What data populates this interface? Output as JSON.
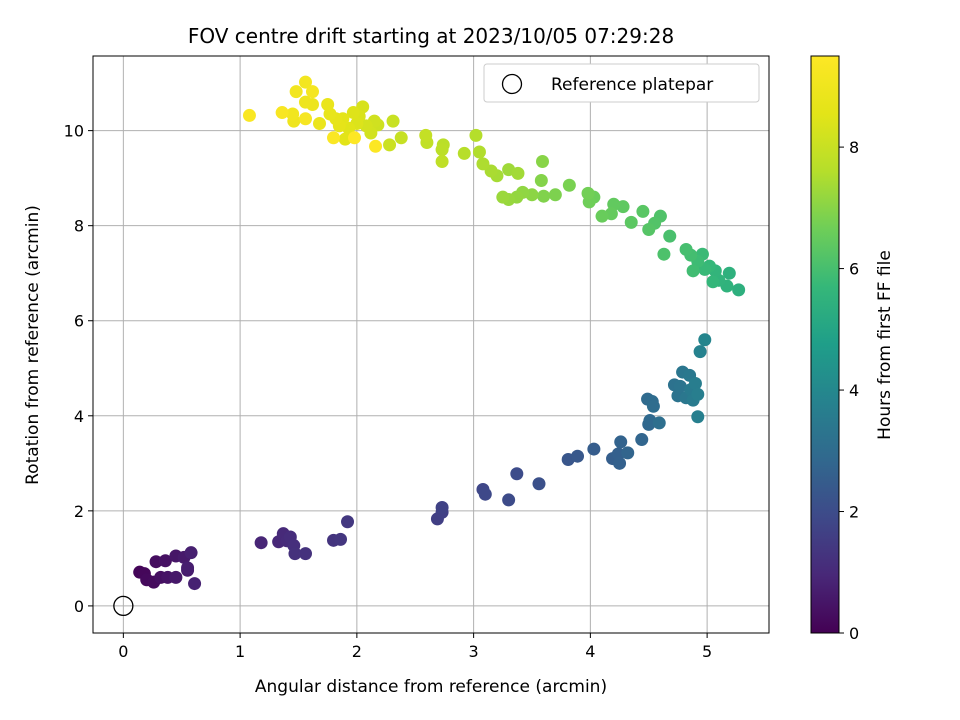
{
  "chart_data": {
    "type": "scatter",
    "title": "FOV centre drift starting at 2023/10/05 07:29:28",
    "xlabel": "Angular distance from reference (arcmin)",
    "ylabel": "Rotation from reference (arcmin)",
    "xlim": [
      -0.26,
      5.53
    ],
    "ylim": [
      -0.57,
      11.57
    ],
    "xticks": [
      0,
      1,
      2,
      3,
      4,
      5
    ],
    "yticks": [
      0,
      2,
      4,
      6,
      8,
      10
    ],
    "grid": true,
    "legend": {
      "position": "top-right",
      "entries": [
        "Reference platepar"
      ]
    },
    "colorbar": {
      "label": "Hours from first FF file",
      "range": [
        0,
        9.5
      ],
      "ticks": [
        0,
        2,
        4,
        6,
        8
      ],
      "colormap": "viridis"
    },
    "reference_point": {
      "x": 0,
      "y": 0,
      "name": "Reference platepar"
    },
    "series": [
      {
        "color_by": "hours",
        "points": [
          {
            "x": 0.14,
            "y": 0.71,
            "c": 0.1
          },
          {
            "x": 0.18,
            "y": 0.68,
            "c": 0.15
          },
          {
            "x": 0.2,
            "y": 0.55,
            "c": 0.2
          },
          {
            "x": 0.26,
            "y": 0.5,
            "c": 0.25
          },
          {
            "x": 0.28,
            "y": 0.93,
            "c": 0.3
          },
          {
            "x": 0.32,
            "y": 0.6,
            "c": 0.35
          },
          {
            "x": 0.36,
            "y": 0.95,
            "c": 0.4
          },
          {
            "x": 0.38,
            "y": 0.6,
            "c": 0.45
          },
          {
            "x": 0.45,
            "y": 1.05,
            "c": 0.5
          },
          {
            "x": 0.45,
            "y": 0.6,
            "c": 0.55
          },
          {
            "x": 0.52,
            "y": 1.02,
            "c": 0.6
          },
          {
            "x": 0.55,
            "y": 0.75,
            "c": 0.65
          },
          {
            "x": 0.55,
            "y": 0.8,
            "c": 0.7
          },
          {
            "x": 0.58,
            "y": 1.12,
            "c": 0.75
          },
          {
            "x": 0.61,
            "y": 0.47,
            "c": 0.8
          },
          {
            "x": 1.18,
            "y": 1.33,
            "c": 0.9
          },
          {
            "x": 1.33,
            "y": 1.35,
            "c": 0.95
          },
          {
            "x": 1.37,
            "y": 1.52,
            "c": 1.0
          },
          {
            "x": 1.4,
            "y": 1.37,
            "c": 1.05
          },
          {
            "x": 1.43,
            "y": 1.45,
            "c": 1.1
          },
          {
            "x": 1.46,
            "y": 1.27,
            "c": 1.15
          },
          {
            "x": 1.47,
            "y": 1.1,
            "c": 1.2
          },
          {
            "x": 1.56,
            "y": 1.1,
            "c": 1.25
          },
          {
            "x": 1.8,
            "y": 1.38,
            "c": 1.3
          },
          {
            "x": 1.86,
            "y": 1.4,
            "c": 1.35
          },
          {
            "x": 1.92,
            "y": 1.77,
            "c": 1.4
          },
          {
            "x": 2.69,
            "y": 1.83,
            "c": 1.6
          },
          {
            "x": 2.73,
            "y": 1.97,
            "c": 1.65
          },
          {
            "x": 2.73,
            "y": 2.07,
            "c": 1.7
          },
          {
            "x": 3.08,
            "y": 2.45,
            "c": 1.85
          },
          {
            "x": 3.1,
            "y": 2.35,
            "c": 1.9
          },
          {
            "x": 3.3,
            "y": 2.23,
            "c": 1.95
          },
          {
            "x": 3.37,
            "y": 2.78,
            "c": 2.0
          },
          {
            "x": 3.56,
            "y": 2.57,
            "c": 2.1
          },
          {
            "x": 3.81,
            "y": 3.08,
            "c": 2.3
          },
          {
            "x": 3.89,
            "y": 3.15,
            "c": 2.35
          },
          {
            "x": 4.03,
            "y": 3.3,
            "c": 2.5
          },
          {
            "x": 4.19,
            "y": 3.1,
            "c": 2.55
          },
          {
            "x": 4.24,
            "y": 3.2,
            "c": 2.6
          },
          {
            "x": 4.25,
            "y": 3.0,
            "c": 2.65
          },
          {
            "x": 4.26,
            "y": 3.45,
            "c": 2.7
          },
          {
            "x": 4.32,
            "y": 3.22,
            "c": 2.75
          },
          {
            "x": 4.44,
            "y": 3.5,
            "c": 2.8
          },
          {
            "x": 4.5,
            "y": 3.82,
            "c": 2.85
          },
          {
            "x": 4.51,
            "y": 3.9,
            "c": 2.9
          },
          {
            "x": 4.49,
            "y": 4.35,
            "c": 2.95
          },
          {
            "x": 4.53,
            "y": 4.3,
            "c": 3.0
          },
          {
            "x": 4.54,
            "y": 4.2,
            "c": 3.05
          },
          {
            "x": 4.59,
            "y": 3.85,
            "c": 3.1
          },
          {
            "x": 4.72,
            "y": 4.65,
            "c": 3.2
          },
          {
            "x": 4.75,
            "y": 4.42,
            "c": 3.25
          },
          {
            "x": 4.77,
            "y": 4.62,
            "c": 3.3
          },
          {
            "x": 4.79,
            "y": 4.92,
            "c": 3.35
          },
          {
            "x": 4.82,
            "y": 4.38,
            "c": 3.4
          },
          {
            "x": 4.85,
            "y": 4.85,
            "c": 3.45
          },
          {
            "x": 4.86,
            "y": 4.55,
            "c": 3.5
          },
          {
            "x": 4.88,
            "y": 4.33,
            "c": 3.55
          },
          {
            "x": 4.9,
            "y": 4.68,
            "c": 3.6
          },
          {
            "x": 4.92,
            "y": 4.45,
            "c": 3.65
          },
          {
            "x": 4.92,
            "y": 3.98,
            "c": 3.7
          },
          {
            "x": 4.94,
            "y": 5.35,
            "c": 3.8
          },
          {
            "x": 4.98,
            "y": 5.6,
            "c": 3.9
          },
          {
            "x": 5.27,
            "y": 6.65,
            "c": 5.4
          },
          {
            "x": 5.19,
            "y": 7.0,
            "c": 5.45
          },
          {
            "x": 5.17,
            "y": 6.73,
            "c": 5.5
          },
          {
            "x": 5.1,
            "y": 6.85,
            "c": 5.55
          },
          {
            "x": 5.07,
            "y": 7.05,
            "c": 5.6
          },
          {
            "x": 5.05,
            "y": 6.82,
            "c": 5.65
          },
          {
            "x": 5.02,
            "y": 7.15,
            "c": 5.7
          },
          {
            "x": 4.98,
            "y": 7.08,
            "c": 5.75
          },
          {
            "x": 4.96,
            "y": 7.4,
            "c": 5.8
          },
          {
            "x": 4.92,
            "y": 7.25,
            "c": 5.85
          },
          {
            "x": 4.88,
            "y": 7.05,
            "c": 5.9
          },
          {
            "x": 4.86,
            "y": 7.38,
            "c": 5.95
          },
          {
            "x": 4.82,
            "y": 7.5,
            "c": 6.0
          },
          {
            "x": 4.68,
            "y": 7.78,
            "c": 6.05
          },
          {
            "x": 4.63,
            "y": 7.4,
            "c": 6.1
          },
          {
            "x": 4.6,
            "y": 8.2,
            "c": 6.15
          },
          {
            "x": 4.55,
            "y": 8.05,
            "c": 6.2
          },
          {
            "x": 4.5,
            "y": 7.92,
            "c": 6.25
          },
          {
            "x": 4.45,
            "y": 8.3,
            "c": 6.3
          },
          {
            "x": 4.35,
            "y": 8.07,
            "c": 6.35
          },
          {
            "x": 4.28,
            "y": 8.4,
            "c": 6.4
          },
          {
            "x": 4.2,
            "y": 8.45,
            "c": 6.45
          },
          {
            "x": 4.18,
            "y": 8.25,
            "c": 6.5
          },
          {
            "x": 4.1,
            "y": 8.2,
            "c": 6.55
          },
          {
            "x": 4.03,
            "y": 8.6,
            "c": 6.6
          },
          {
            "x": 3.99,
            "y": 8.5,
            "c": 6.65
          },
          {
            "x": 3.98,
            "y": 8.68,
            "c": 6.7
          },
          {
            "x": 3.82,
            "y": 8.85,
            "c": 6.8
          },
          {
            "x": 3.7,
            "y": 8.65,
            "c": 6.85
          },
          {
            "x": 3.6,
            "y": 8.62,
            "c": 6.9
          },
          {
            "x": 3.58,
            "y": 8.95,
            "c": 6.95
          },
          {
            "x": 3.59,
            "y": 9.35,
            "c": 7.0
          },
          {
            "x": 3.5,
            "y": 8.65,
            "c": 7.05
          },
          {
            "x": 3.42,
            "y": 8.7,
            "c": 7.1
          },
          {
            "x": 3.37,
            "y": 8.6,
            "c": 7.15
          },
          {
            "x": 3.3,
            "y": 8.55,
            "c": 7.2
          },
          {
            "x": 3.25,
            "y": 8.6,
            "c": 7.25
          },
          {
            "x": 3.3,
            "y": 9.18,
            "c": 7.3
          },
          {
            "x": 3.38,
            "y": 9.1,
            "c": 7.35
          },
          {
            "x": 3.2,
            "y": 9.05,
            "c": 7.4
          },
          {
            "x": 3.15,
            "y": 9.15,
            "c": 7.45
          },
          {
            "x": 3.08,
            "y": 9.3,
            "c": 7.5
          },
          {
            "x": 3.05,
            "y": 9.55,
            "c": 7.55
          },
          {
            "x": 3.02,
            "y": 9.9,
            "c": 7.6
          },
          {
            "x": 2.92,
            "y": 9.52,
            "c": 7.65
          },
          {
            "x": 2.74,
            "y": 9.7,
            "c": 7.7
          },
          {
            "x": 2.73,
            "y": 9.6,
            "c": 7.75
          },
          {
            "x": 2.73,
            "y": 9.35,
            "c": 7.8
          },
          {
            "x": 2.6,
            "y": 9.75,
            "c": 7.85
          },
          {
            "x": 2.59,
            "y": 9.9,
            "c": 7.9
          },
          {
            "x": 2.38,
            "y": 9.85,
            "c": 7.95
          },
          {
            "x": 2.31,
            "y": 10.2,
            "c": 8.0
          },
          {
            "x": 2.28,
            "y": 9.7,
            "c": 8.05
          },
          {
            "x": 2.18,
            "y": 10.12,
            "c": 8.1
          },
          {
            "x": 2.15,
            "y": 10.2,
            "c": 8.15
          },
          {
            "x": 2.12,
            "y": 9.95,
            "c": 8.2
          },
          {
            "x": 2.08,
            "y": 10.1,
            "c": 8.25
          },
          {
            "x": 2.05,
            "y": 10.5,
            "c": 8.3
          },
          {
            "x": 2.02,
            "y": 10.3,
            "c": 8.35
          },
          {
            "x": 2.0,
            "y": 10.15,
            "c": 8.4
          },
          {
            "x": 1.97,
            "y": 10.38,
            "c": 8.45
          },
          {
            "x": 1.93,
            "y": 10.05,
            "c": 8.5
          },
          {
            "x": 1.9,
            "y": 9.82,
            "c": 8.55
          },
          {
            "x": 1.88,
            "y": 10.25,
            "c": 8.6
          },
          {
            "x": 1.85,
            "y": 10.1,
            "c": 8.65
          },
          {
            "x": 1.82,
            "y": 10.25,
            "c": 8.7
          },
          {
            "x": 1.77,
            "y": 10.35,
            "c": 8.75
          },
          {
            "x": 1.75,
            "y": 10.55,
            "c": 8.8
          },
          {
            "x": 1.68,
            "y": 10.15,
            "c": 8.85
          },
          {
            "x": 1.62,
            "y": 10.55,
            "c": 8.9
          },
          {
            "x": 1.56,
            "y": 10.6,
            "c": 8.95
          },
          {
            "x": 1.46,
            "y": 10.2,
            "c": 9.0
          },
          {
            "x": 1.45,
            "y": 10.35,
            "c": 9.05
          },
          {
            "x": 1.48,
            "y": 10.82,
            "c": 9.1
          },
          {
            "x": 1.56,
            "y": 11.02,
            "c": 9.15
          },
          {
            "x": 1.62,
            "y": 10.82,
            "c": 9.2
          },
          {
            "x": 1.56,
            "y": 10.25,
            "c": 9.25
          },
          {
            "x": 1.36,
            "y": 10.38,
            "c": 9.3
          },
          {
            "x": 1.08,
            "y": 10.32,
            "c": 9.35
          },
          {
            "x": 1.8,
            "y": 9.85,
            "c": 9.4
          },
          {
            "x": 2.16,
            "y": 9.67,
            "c": 9.45
          },
          {
            "x": 1.98,
            "y": 9.85,
            "c": 9.5
          }
        ]
      }
    ]
  }
}
